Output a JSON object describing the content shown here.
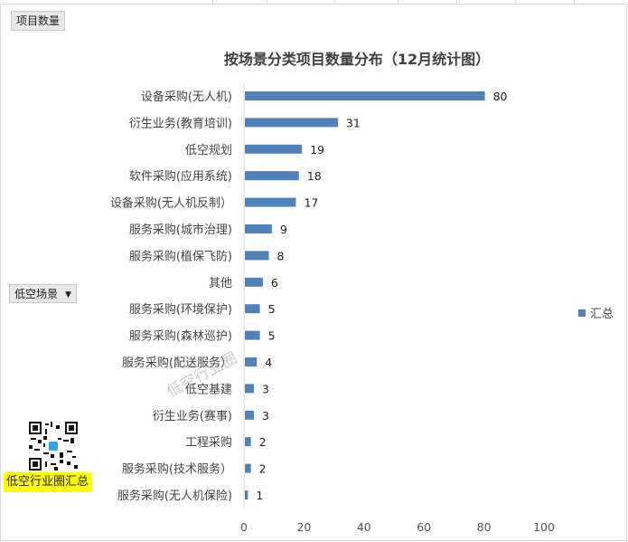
{
  "field_buttons": {
    "values_field": "项目数量",
    "axis_field": "低空场景"
  },
  "watermark": "低空行业圈",
  "qr_caption": "低空行业圈汇总",
  "colors": {
    "bar": "#4f81bd",
    "qr_accent": "#29a9e0",
    "caption_bg": "#ffff00"
  },
  "chart_data": {
    "type": "bar",
    "orientation": "horizontal",
    "title": "按场景分类项目数量分布（12月统计图）",
    "categories": [
      "设备采购(无人机)",
      "衍生业务(教育培训)",
      "低空规划",
      "软件采购(应用系统)",
      "设备采购(无人机反制）",
      "服务采购(城市治理)",
      "服务采购(植保飞防)",
      "其他",
      "服务采购(环境保护)",
      "服务采购(森林巡护)",
      "服务采购(配送服务）",
      "低空基建",
      "衍生业务(赛事)",
      "工程采购",
      "服务采购(技术服务）",
      "服务采购(无人机保险)"
    ],
    "series": [
      {
        "name": "汇总",
        "values": [
          80,
          31,
          19,
          18,
          17,
          9,
          8,
          6,
          5,
          5,
          4,
          3,
          3,
          2,
          2,
          1
        ]
      }
    ],
    "xlim": [
      0,
      100
    ],
    "xticks": [
      0,
      20,
      40,
      60,
      80,
      100
    ],
    "legend_position": "right",
    "grid": false,
    "data_labels": true
  }
}
